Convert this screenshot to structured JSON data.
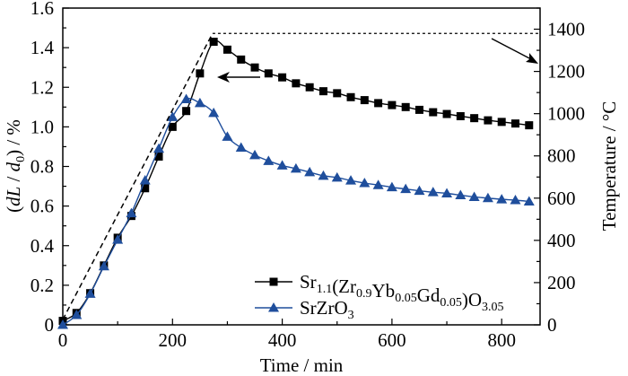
{
  "chart_data": {
    "type": "line",
    "xlabel": "Time / min",
    "ylabel": "(dL / d0) / %",
    "y2label": "Temperature / °C",
    "xlim": [
      0,
      870
    ],
    "ylim": [
      0,
      1.6
    ],
    "y2lim": [
      0,
      1500
    ],
    "xticks": [
      0,
      200,
      400,
      600,
      800
    ],
    "yticks": [
      0,
      0.2,
      0.4,
      0.6,
      0.8,
      1.0,
      1.2,
      1.4,
      1.6
    ],
    "ytick_labels": [
      "0",
      "0.2",
      "0.4",
      "0.6",
      "0.8",
      "1.0",
      "1.2",
      "1.4",
      "1.6"
    ],
    "y2ticks": [
      0,
      200,
      400,
      600,
      800,
      1000,
      1200,
      1400
    ],
    "grid": false,
    "legend_position": "bottom-right",
    "series": [
      {
        "name": "Sr1.1(Zr0.9Yb0.05Gd0.05)O3.05",
        "axis": "left",
        "marker": "square",
        "color": "#000000",
        "x": [
          0,
          25,
          50,
          75,
          100,
          125,
          150,
          175,
          200,
          225,
          250,
          275,
          300,
          325,
          350,
          375,
          400,
          425,
          450,
          475,
          500,
          525,
          550,
          575,
          600,
          625,
          650,
          675,
          700,
          725,
          750,
          775,
          800,
          825,
          850
        ],
        "y": [
          0.02,
          0.06,
          0.16,
          0.3,
          0.44,
          0.55,
          0.69,
          0.85,
          1.0,
          1.08,
          1.27,
          1.43,
          1.39,
          1.34,
          1.3,
          1.27,
          1.25,
          1.22,
          1.2,
          1.18,
          1.17,
          1.15,
          1.135,
          1.12,
          1.11,
          1.1,
          1.086,
          1.074,
          1.065,
          1.054,
          1.044,
          1.033,
          1.025,
          1.017,
          1.008
        ]
      },
      {
        "name": "SrZrO3",
        "axis": "left",
        "marker": "triangle",
        "color": "#1f4e9c",
        "x": [
          0,
          25,
          50,
          75,
          100,
          125,
          150,
          175,
          200,
          225,
          250,
          275,
          300,
          325,
          350,
          375,
          400,
          425,
          450,
          475,
          500,
          525,
          550,
          575,
          600,
          625,
          650,
          675,
          700,
          725,
          750,
          775,
          800,
          825,
          850
        ],
        "y": [
          0.0,
          0.05,
          0.157,
          0.296,
          0.43,
          0.564,
          0.73,
          0.89,
          1.05,
          1.14,
          1.12,
          1.07,
          0.95,
          0.895,
          0.857,
          0.828,
          0.805,
          0.789,
          0.771,
          0.753,
          0.744,
          0.729,
          0.716,
          0.706,
          0.695,
          0.686,
          0.677,
          0.67,
          0.664,
          0.655,
          0.646,
          0.64,
          0.634,
          0.63,
          0.623
        ]
      },
      {
        "axis": "right",
        "style": "dashed",
        "color": "#000000",
        "x": [
          0,
          273,
          870
        ],
        "y": [
          25,
          1380,
          1380
        ]
      }
    ],
    "annotations": [
      {
        "type": "arrow",
        "direction": "left",
        "points_to": "left axis"
      },
      {
        "type": "arrow",
        "direction": "right",
        "points_to": "right axis"
      }
    ]
  }
}
